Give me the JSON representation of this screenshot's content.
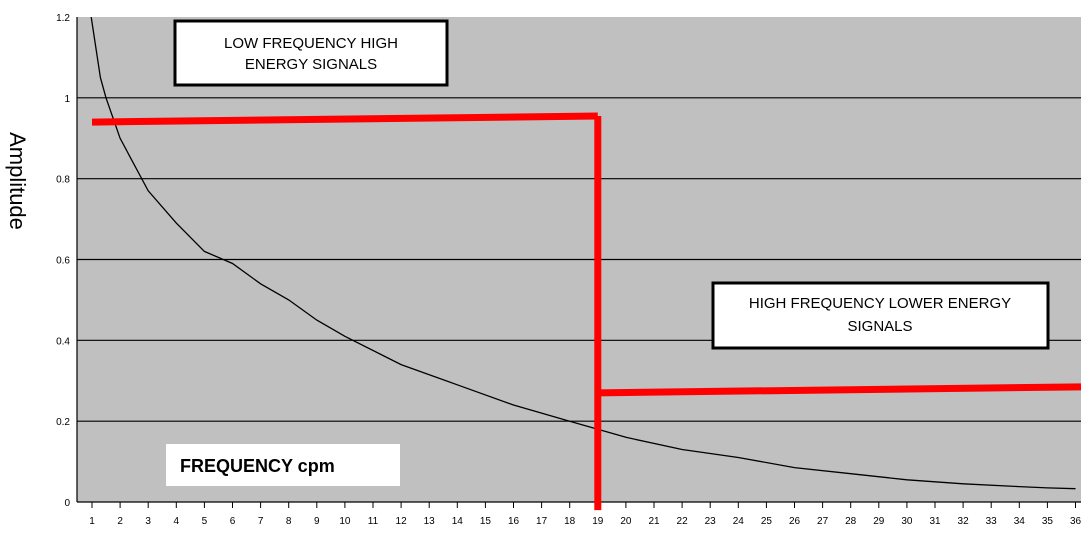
{
  "chart_data": {
    "type": "line",
    "ylabel": "Amplitude",
    "xlabel": "FREQUENCY cpm",
    "ylim": [
      0,
      1.2
    ],
    "xlim": [
      0.5,
      36.2
    ],
    "y_ticks": [
      "0",
      "0.2",
      "0.4",
      "0.6",
      "0.8",
      "1",
      "1.2"
    ],
    "x_ticks": [
      "1",
      "2",
      "3",
      "4",
      "5",
      "6",
      "7",
      "8",
      "9",
      "10",
      "11",
      "12",
      "13",
      "14",
      "15",
      "16",
      "17",
      "18",
      "19",
      "20",
      "21",
      "22",
      "23",
      "24",
      "25",
      "26",
      "27",
      "28",
      "29",
      "30",
      "31",
      "32",
      "33",
      "34",
      "35",
      "36"
    ],
    "grid": true,
    "plot_background": "#c0c0c0",
    "curve_color": "#000000",
    "boundary_color": "#ff0000",
    "series": [
      {
        "values_x": [
          0.97,
          1.3,
          1.5,
          2,
          3,
          4,
          5,
          6,
          7,
          8,
          9,
          10,
          12,
          14,
          16,
          18,
          20,
          22,
          24,
          26,
          28,
          30,
          32,
          34,
          35,
          36
        ],
        "values_y": [
          1.2,
          1.05,
          1.0,
          0.9,
          0.77,
          0.69,
          0.62,
          0.59,
          0.54,
          0.5,
          0.45,
          0.41,
          0.34,
          0.29,
          0.24,
          0.2,
          0.16,
          0.13,
          0.11,
          0.085,
          0.07,
          0.055,
          0.045,
          0.038,
          0.035,
          0.033
        ]
      }
    ],
    "boundary_lines": [
      {
        "x": [
          1,
          19
        ],
        "y": [
          0.94,
          0.955
        ]
      },
      {
        "x": [
          19,
          19
        ],
        "y": [
          0.955,
          -0.02
        ]
      },
      {
        "x": [
          19,
          36.2
        ],
        "y": [
          0.27,
          0.285
        ]
      }
    ],
    "annotations": {
      "low_box": [
        "LOW FREQUENCY HIGH",
        "ENERGY SIGNALS"
      ],
      "high_box": [
        "HIGH FREQUENCY LOWER ENERGY",
        "SIGNALS"
      ],
      "freq_box": "FREQUENCY cpm"
    }
  }
}
